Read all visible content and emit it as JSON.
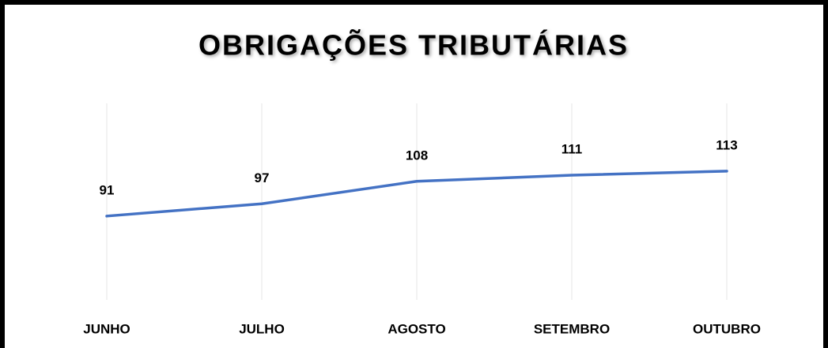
{
  "chart_data": {
    "type": "line",
    "title": "OBRIGAÇÕES TRIBUTÁRIAS",
    "categories": [
      "JUNHO",
      "JULHO",
      "AGOSTO",
      "SETEMBRO",
      "OUTUBRO"
    ],
    "values": [
      91,
      97,
      108,
      111,
      113
    ],
    "color": "#4472c4",
    "ylim": [
      50,
      150
    ]
  }
}
